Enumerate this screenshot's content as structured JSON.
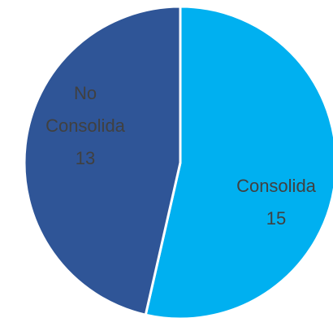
{
  "chart_data": {
    "type": "pie",
    "categories": [
      "Consolida",
      "No Consolida"
    ],
    "values": [
      15,
      13
    ],
    "label_lines": [
      [
        "Consolida",
        "15"
      ],
      [
        "No",
        "Consolida",
        "13"
      ]
    ],
    "colors": [
      "#00B0F0",
      "#2F5597"
    ],
    "label_color": "#404040",
    "start_angle_deg": 0,
    "direction": "clockwise",
    "legend": "none"
  }
}
